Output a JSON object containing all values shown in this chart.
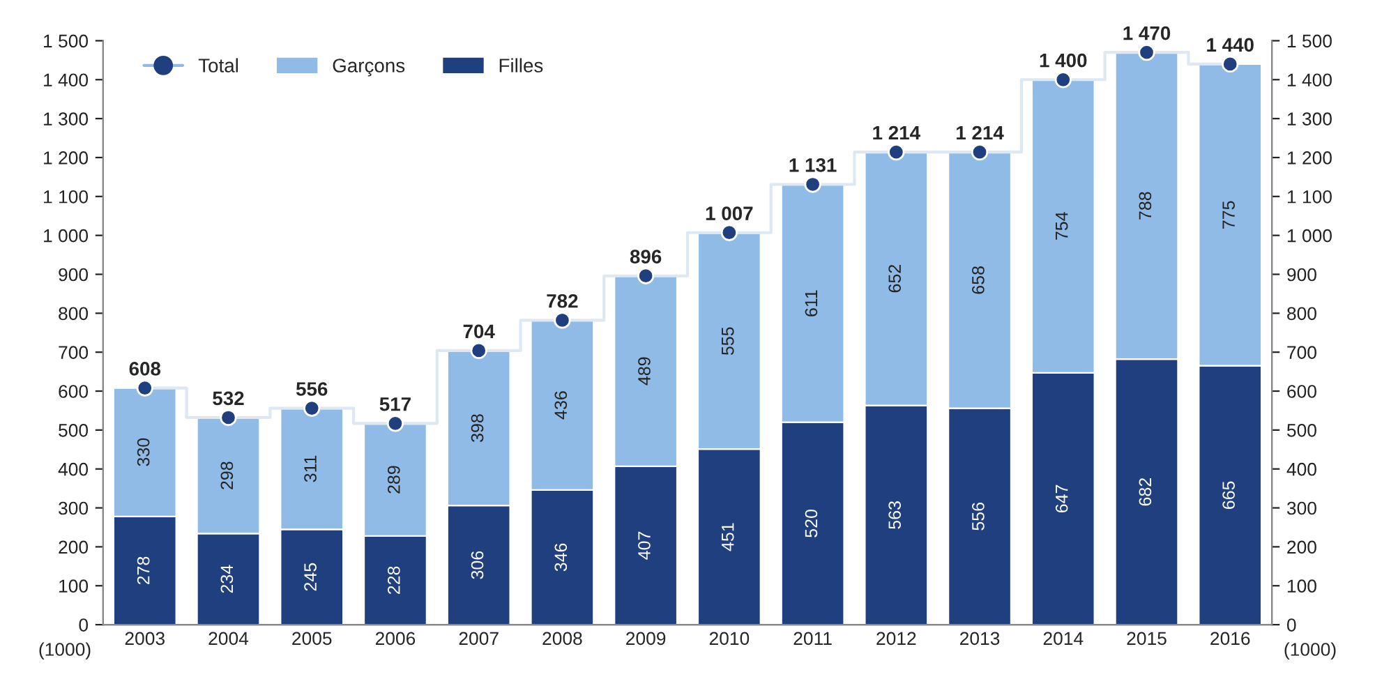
{
  "chart_data": {
    "type": "bar",
    "stacked": true,
    "categories": [
      "2003",
      "2004",
      "2005",
      "2006",
      "2007",
      "2008",
      "2009",
      "2010",
      "2011",
      "2012",
      "2013",
      "2014",
      "2015",
      "2016"
    ],
    "series": [
      {
        "name": "Filles",
        "color": "#1f3f7f",
        "values": [
          278,
          234,
          245,
          228,
          306,
          346,
          407,
          451,
          520,
          563,
          556,
          647,
          682,
          665
        ]
      },
      {
        "name": "Garçons",
        "color": "#8fbbe6",
        "values": [
          330,
          298,
          311,
          289,
          398,
          436,
          489,
          555,
          611,
          652,
          658,
          754,
          788,
          775
        ]
      },
      {
        "name": "Total",
        "type": "step",
        "marker": "circle",
        "color": "#1f3f7f",
        "values": [
          608,
          532,
          556,
          517,
          704,
          782,
          896,
          1007,
          1131,
          1214,
          1214,
          1400,
          1470,
          1440
        ],
        "value_labels": [
          "608",
          "532",
          "556",
          "517",
          "704",
          "782",
          "896",
          "1 007",
          "1 131",
          "1 214",
          "1 214",
          "1 400",
          "1 470",
          "1 440"
        ]
      }
    ],
    "ylabel": "(1000)",
    "y2label": "(1000)",
    "ylim": [
      0,
      1500
    ],
    "yticks": [
      0,
      100,
      200,
      300,
      400,
      500,
      600,
      700,
      800,
      900,
      {
        "value": 1000,
        "label": "1 000"
      },
      {
        "value": 1100,
        "label": "1 100"
      },
      {
        "value": 1200,
        "label": "1 200"
      },
      {
        "value": 1300,
        "label": "1 300"
      },
      {
        "value": 1400,
        "label": "1 400"
      },
      {
        "value": 1500,
        "label": "1 500"
      }
    ],
    "y2lim": [
      0,
      1500
    ],
    "y2ticks": [
      0,
      100,
      200,
      300,
      400,
      500,
      600,
      700,
      800,
      900,
      {
        "value": 1000,
        "label": "1 000"
      },
      {
        "value": 1100,
        "label": "1 100"
      },
      {
        "value": 1200,
        "label": "1 200"
      },
      {
        "value": 1300,
        "label": "1 300"
      },
      {
        "value": 1400,
        "label": "1 400"
      },
      {
        "value": 1500,
        "label": "1 500"
      }
    ],
    "data_labels": true,
    "grid": false,
    "legend": "top left"
  }
}
